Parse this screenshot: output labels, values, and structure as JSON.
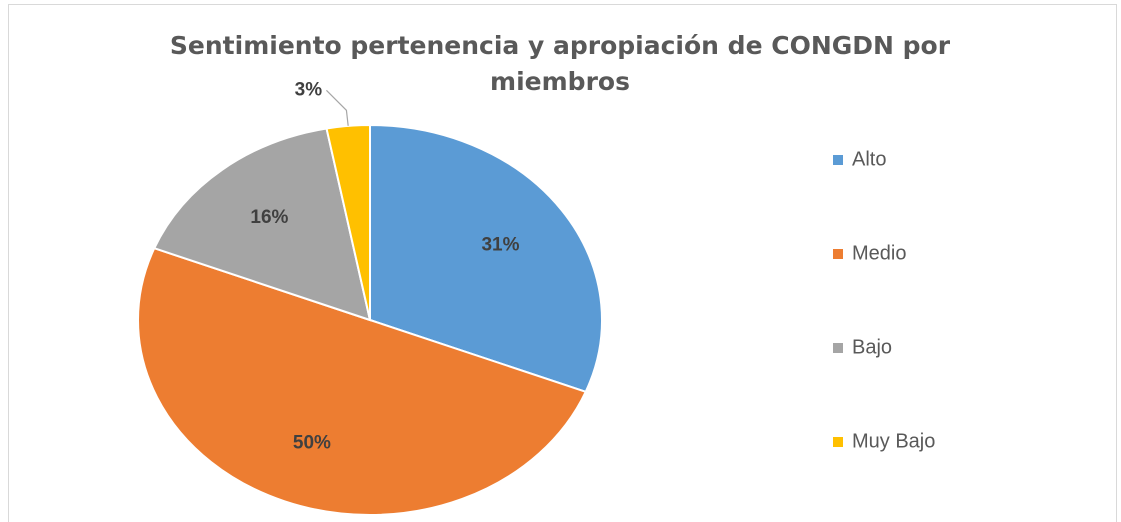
{
  "chart_data": {
    "type": "pie",
    "title": "Sentimiento pertenencia y apropiación de CONGDN por miembros",
    "categories": [
      "Alto",
      "Medio",
      "Bajo",
      "Muy Bajo"
    ],
    "values": [
      31,
      50,
      16,
      3
    ],
    "value_labels": [
      "31%",
      "50%",
      "16%",
      "3%"
    ],
    "colors": [
      "#5b9bd5",
      "#ed7d31",
      "#a5a5a5",
      "#ffc000"
    ],
    "legend": "right"
  }
}
